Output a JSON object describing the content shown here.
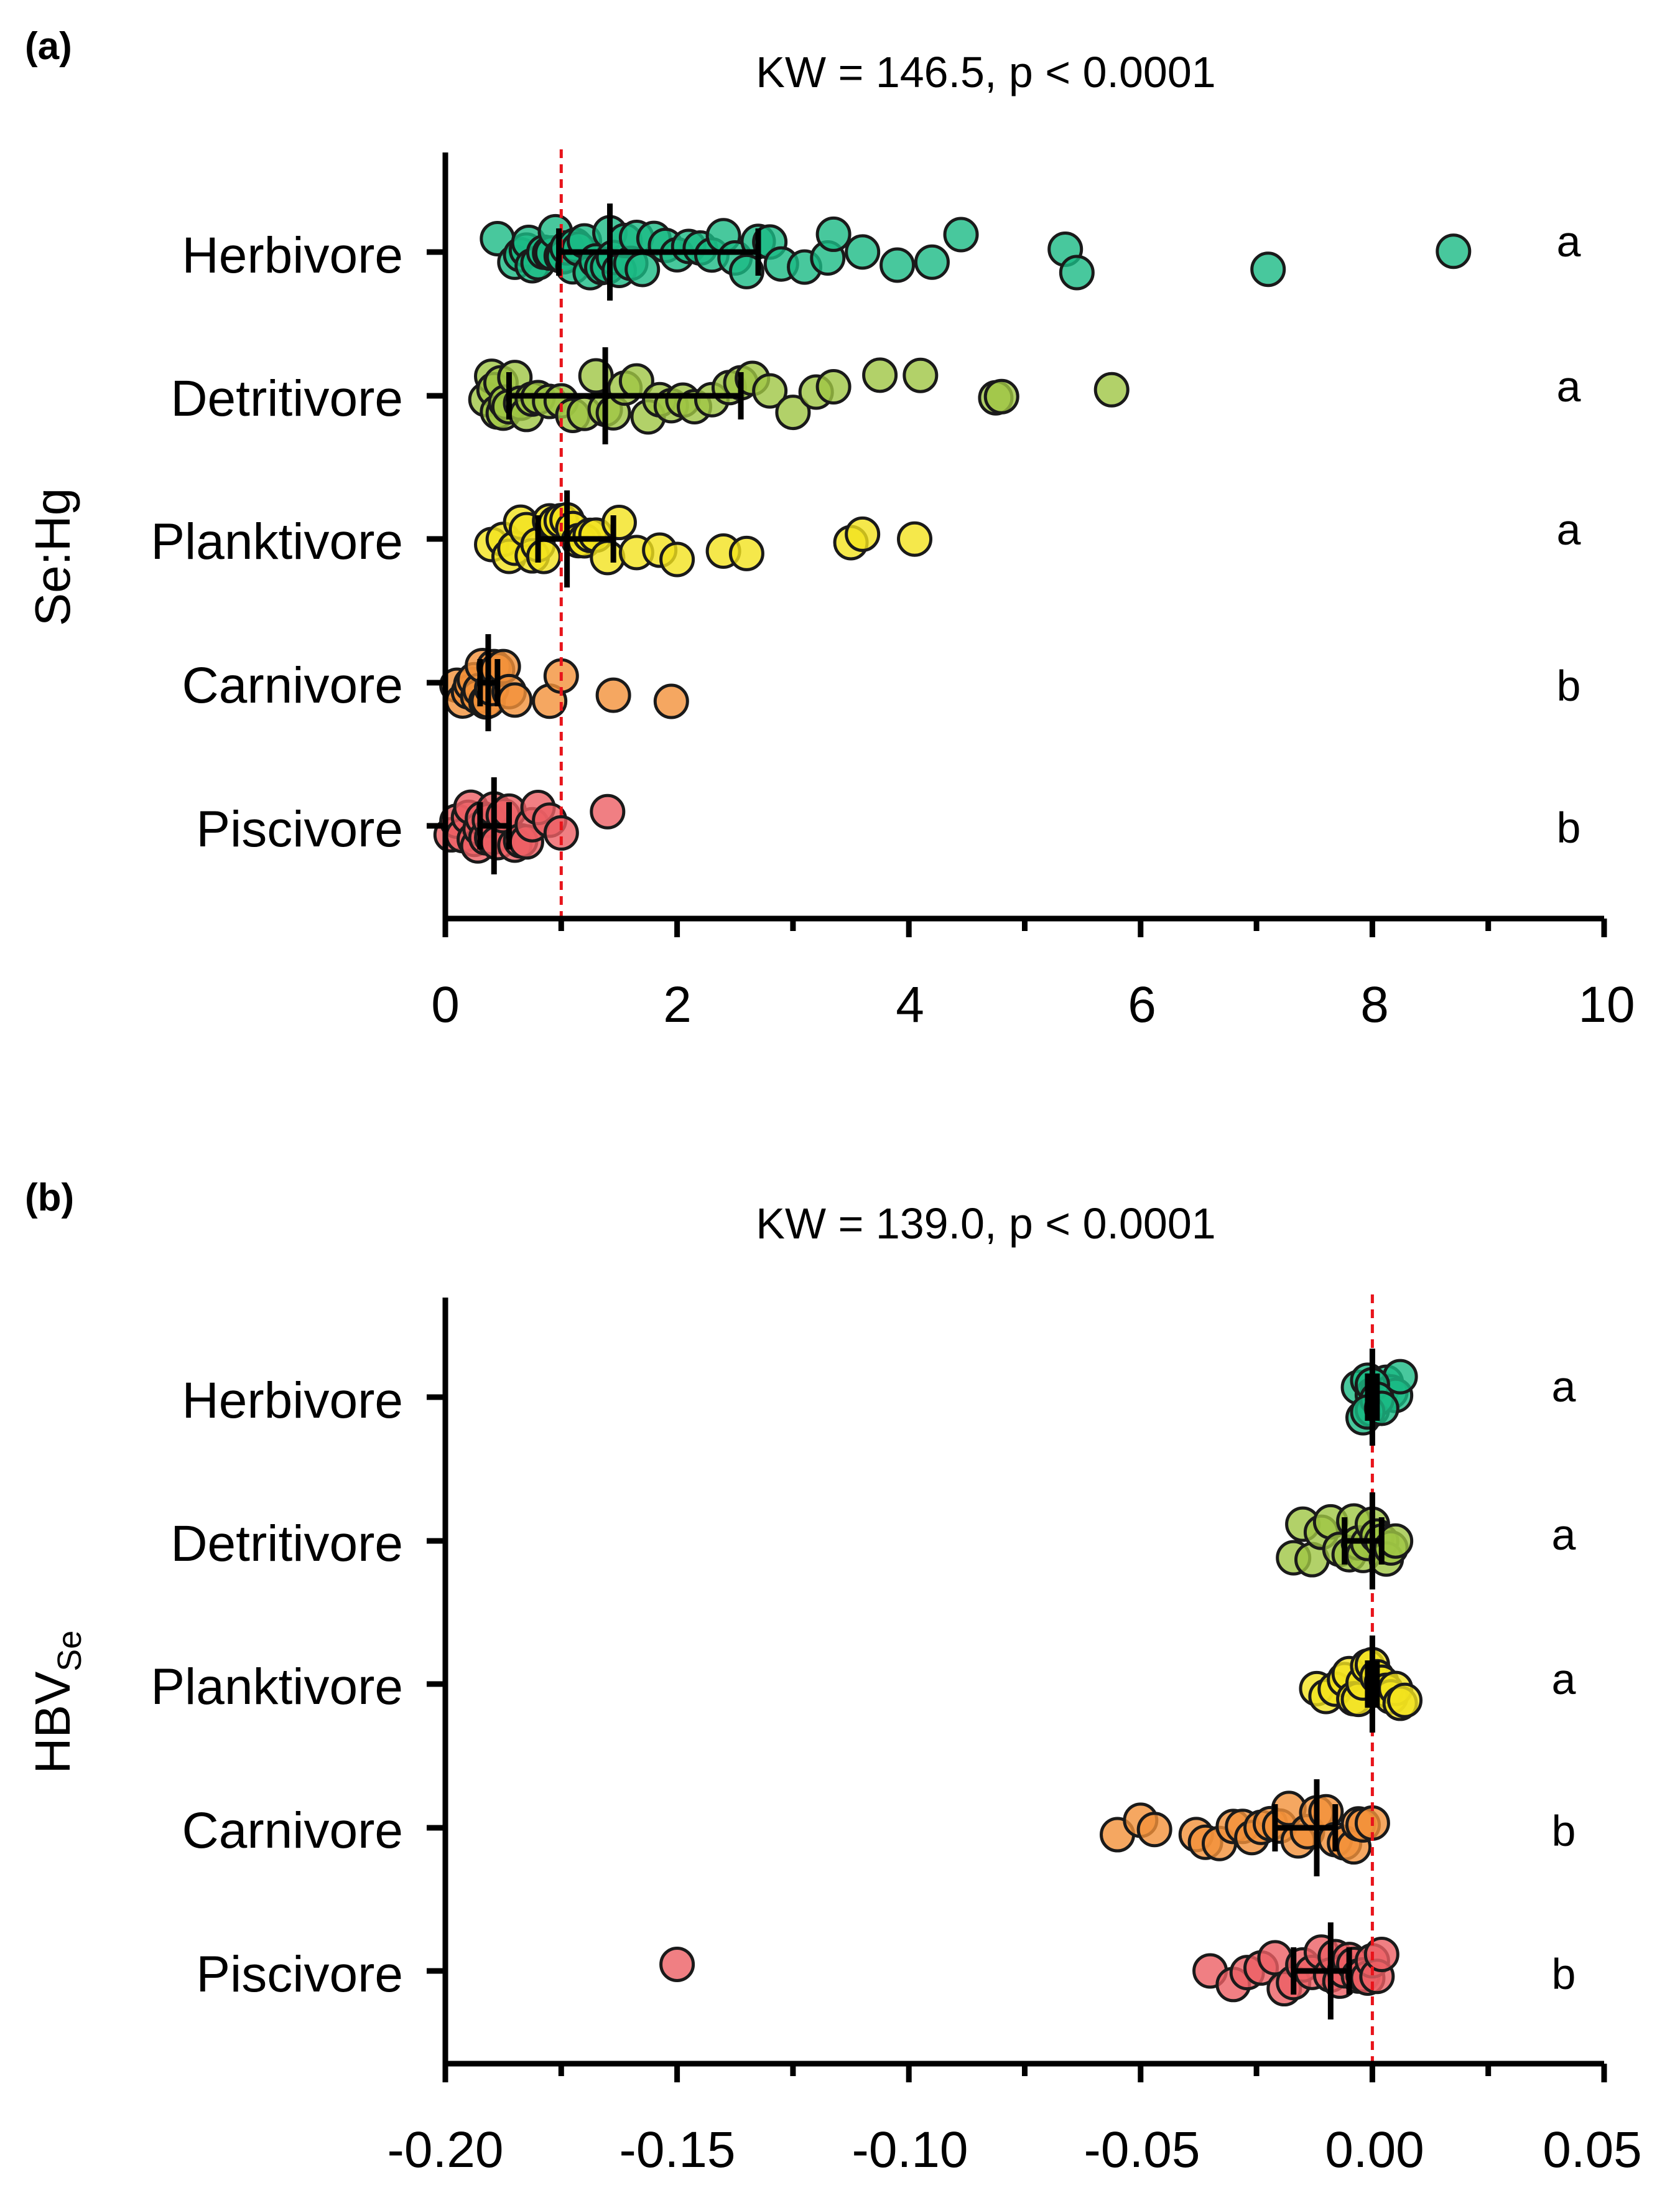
{
  "chart_data": [
    {
      "type": "scatter",
      "panel": "(a)",
      "title": "KW = 146.5, p < 0.0001",
      "ylabel": "Se:Hg",
      "xlabel": "",
      "xlim": [
        0,
        10
      ],
      "xticks": [
        "0",
        "2",
        "4",
        "6",
        "8",
        "10"
      ],
      "xtick_values": [
        0,
        2,
        4,
        6,
        8,
        10
      ],
      "reference_line": 1,
      "categories": [
        "Herbivore",
        "Detritivore",
        "Planktivore",
        "Carnivore",
        "Piscivore"
      ],
      "letters": [
        "a",
        "a",
        "a",
        "b",
        "b"
      ],
      "series": [
        {
          "name": "Herbivore",
          "color": "#1aba84",
          "median": 1.42,
          "q1": 0.98,
          "q3": 2.7,
          "values": [
            0.45,
            0.6,
            0.65,
            0.7,
            0.72,
            0.75,
            0.8,
            0.85,
            0.9,
            0.92,
            0.95,
            1.0,
            1.02,
            1.05,
            1.1,
            1.12,
            1.15,
            1.2,
            1.25,
            1.3,
            1.35,
            1.4,
            1.42,
            1.45,
            1.5,
            1.55,
            1.6,
            1.65,
            1.7,
            1.8,
            1.9,
            2.0,
            2.1,
            2.2,
            2.3,
            2.4,
            2.5,
            2.6,
            2.7,
            2.8,
            2.9,
            3.1,
            3.3,
            3.35,
            3.6,
            3.9,
            4.2,
            4.45,
            5.35,
            5.45,
            7.1,
            8.7
          ]
        },
        {
          "name": "Detritivore",
          "color": "#9fc644",
          "median": 1.38,
          "q1": 0.55,
          "q3": 2.55,
          "values": [
            0.35,
            0.4,
            0.42,
            0.45,
            0.48,
            0.5,
            0.52,
            0.55,
            0.6,
            0.65,
            0.7,
            0.75,
            0.8,
            0.9,
            1.0,
            1.1,
            1.2,
            1.3,
            1.38,
            1.45,
            1.55,
            1.65,
            1.75,
            1.85,
            1.95,
            2.05,
            2.15,
            2.3,
            2.45,
            2.55,
            2.65,
            2.8,
            3.0,
            3.2,
            3.35,
            3.75,
            4.1,
            4.75,
            4.8,
            5.75
          ]
        },
        {
          "name": "Planktivore",
          "color": "#f2e21e",
          "median": 1.05,
          "q1": 0.8,
          "q3": 1.45,
          "values": [
            0.4,
            0.5,
            0.55,
            0.6,
            0.65,
            0.7,
            0.75,
            0.8,
            0.85,
            0.9,
            0.95,
            1.0,
            1.05,
            1.1,
            1.15,
            1.2,
            1.25,
            1.3,
            1.4,
            1.5,
            1.65,
            1.85,
            2.0,
            2.4,
            2.6,
            3.5,
            3.6,
            4.05
          ]
        },
        {
          "name": "Carnivore",
          "color": "#f2913a",
          "median": 0.37,
          "q1": 0.3,
          "q3": 0.45,
          "values": [
            0.1,
            0.15,
            0.2,
            0.22,
            0.25,
            0.28,
            0.3,
            0.32,
            0.35,
            0.37,
            0.4,
            0.42,
            0.45,
            0.5,
            0.55,
            0.6,
            0.9,
            1.0,
            1.45,
            1.95
          ]
        },
        {
          "name": "Piscivore",
          "color": "#ec5f64",
          "median": 0.42,
          "q1": 0.3,
          "q3": 0.55,
          "values": [
            0.05,
            0.1,
            0.15,
            0.2,
            0.22,
            0.25,
            0.28,
            0.3,
            0.32,
            0.35,
            0.38,
            0.4,
            0.42,
            0.45,
            0.5,
            0.55,
            0.6,
            0.65,
            0.7,
            0.75,
            0.8,
            0.9,
            1.0,
            1.4
          ]
        }
      ]
    },
    {
      "type": "scatter",
      "panel": "(b)",
      "title": "KW = 139.0, p < 0.0001",
      "ylabel": "HBV",
      "ylabel_sub": "Se",
      "xlabel": "",
      "xlim": [
        -0.2,
        0.05
      ],
      "xticks": [
        "-0.20",
        "-0.15",
        "-0.10",
        "-0.05",
        "0.00",
        "0.05"
      ],
      "xtick_values": [
        -0.2,
        -0.15,
        -0.1,
        -0.05,
        0,
        0.05
      ],
      "reference_line": 0,
      "categories": [
        "Herbivore",
        "Detritivore",
        "Planktivore",
        "Carnivore",
        "Piscivore"
      ],
      "letters": [
        "a",
        "a",
        "a",
        "b",
        "b"
      ],
      "series": [
        {
          "name": "Herbivore",
          "color": "#1aba84",
          "median": 0.0,
          "q1": -0.001,
          "q3": 0.001,
          "values": [
            -0.003,
            -0.002,
            -0.001,
            0.0,
            0.0,
            0.001,
            0.002,
            0.003,
            0.004,
            0.005,
            0.006,
            0.0,
            0.001,
            -0.001,
            0.002
          ]
        },
        {
          "name": "Detritivore",
          "color": "#9fc644",
          "median": 0.0,
          "q1": -0.006,
          "q3": 0.002,
          "values": [
            -0.017,
            -0.015,
            -0.013,
            -0.011,
            -0.009,
            -0.007,
            -0.005,
            -0.004,
            -0.003,
            -0.002,
            -0.001,
            0.0,
            0.001,
            0.002,
            0.003,
            0.004,
            0.005
          ]
        },
        {
          "name": "Planktivore",
          "color": "#f2e21e",
          "median": 0.0,
          "q1": -0.001,
          "q3": 0.001,
          "values": [
            -0.012,
            -0.01,
            -0.008,
            -0.006,
            -0.005,
            -0.004,
            -0.003,
            -0.002,
            -0.001,
            0.0,
            0.001,
            0.002,
            0.003,
            0.004,
            0.005,
            0.006,
            0.007
          ]
        },
        {
          "name": "Carnivore",
          "color": "#f2913a",
          "median": -0.012,
          "q1": -0.021,
          "q3": -0.008,
          "values": [
            -0.055,
            -0.05,
            -0.047,
            -0.038,
            -0.036,
            -0.033,
            -0.03,
            -0.028,
            -0.026,
            -0.024,
            -0.022,
            -0.02,
            -0.018,
            -0.016,
            -0.014,
            -0.012,
            -0.01,
            -0.008,
            -0.006,
            -0.004,
            -0.003,
            -0.002,
            0.0
          ]
        },
        {
          "name": "Piscivore",
          "color": "#ec5f64",
          "median": -0.009,
          "q1": -0.017,
          "q3": -0.005,
          "values": [
            -0.15,
            -0.035,
            -0.03,
            -0.027,
            -0.024,
            -0.021,
            -0.019,
            -0.017,
            -0.015,
            -0.013,
            -0.011,
            -0.009,
            -0.008,
            -0.007,
            -0.006,
            -0.005,
            -0.004,
            -0.003,
            -0.002,
            -0.001,
            0.0,
            0.001,
            0.002
          ]
        }
      ]
    }
  ]
}
